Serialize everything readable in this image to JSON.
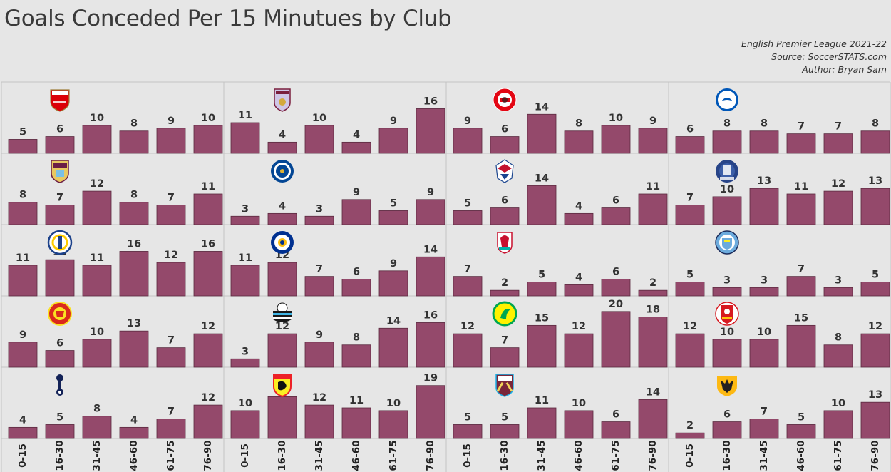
{
  "title": "Goals Conceded Per 15 Minutues by Club",
  "subtitle": {
    "league": "English Premier League 2021-22",
    "source": "Source: SoccerSTATS.com",
    "author": "Author: Bryan Sam"
  },
  "colors": {
    "bar": "#94496b",
    "background": "#e6e6e6"
  },
  "chart_data": {
    "type": "bar",
    "categories": [
      "0-15",
      "16-30",
      "31-45",
      "46-60",
      "61-75",
      "76-90"
    ],
    "ylim": [
      0,
      22
    ],
    "series": [
      {
        "values": [
          5,
          6,
          10,
          8,
          9,
          10
        ],
        "logo": "arsenal-crest"
      },
      {
        "values": [
          11,
          4,
          10,
          4,
          9,
          16
        ],
        "logo": "aston-villa-crest"
      },
      {
        "values": [
          9,
          6,
          14,
          8,
          10,
          9
        ],
        "logo": "brentford-crest"
      },
      {
        "values": [
          6,
          8,
          8,
          7,
          7,
          8
        ],
        "logo": "brighton-crest"
      },
      {
        "values": [
          8,
          7,
          12,
          8,
          7,
          11
        ],
        "logo": "burnley-crest"
      },
      {
        "values": [
          3,
          4,
          3,
          9,
          5,
          9
        ],
        "logo": "chelsea-crest"
      },
      {
        "values": [
          5,
          6,
          14,
          4,
          6,
          11
        ],
        "logo": "crystal-palace-crest"
      },
      {
        "values": [
          7,
          10,
          13,
          11,
          12,
          13
        ],
        "logo": "everton-crest"
      },
      {
        "values": [
          11,
          13,
          11,
          16,
          12,
          16
        ],
        "logo": "leeds-crest"
      },
      {
        "values": [
          11,
          12,
          7,
          6,
          9,
          14
        ],
        "logo": "leicester-crest"
      },
      {
        "values": [
          7,
          2,
          5,
          4,
          6,
          2
        ],
        "logo": "liverpool-crest"
      },
      {
        "values": [
          5,
          3,
          3,
          7,
          3,
          5
        ],
        "logo": "man-city-crest"
      },
      {
        "values": [
          9,
          6,
          10,
          13,
          7,
          12
        ],
        "logo": "man-united-crest"
      },
      {
        "values": [
          3,
          12,
          9,
          8,
          14,
          16
        ],
        "logo": "newcastle-crest"
      },
      {
        "values": [
          12,
          7,
          15,
          12,
          20,
          18
        ],
        "logo": "norwich-crest"
      },
      {
        "values": [
          12,
          10,
          10,
          15,
          8,
          12
        ],
        "logo": "southampton-crest"
      },
      {
        "values": [
          4,
          5,
          8,
          4,
          7,
          12
        ],
        "logo": "tottenham-crest"
      },
      {
        "values": [
          10,
          15,
          12,
          11,
          10,
          19
        ],
        "logo": "watford-crest"
      },
      {
        "values": [
          5,
          5,
          11,
          10,
          6,
          14
        ],
        "logo": "west-ham-crest"
      },
      {
        "values": [
          2,
          6,
          7,
          5,
          10,
          13
        ],
        "logo": "wolves-crest"
      }
    ]
  }
}
